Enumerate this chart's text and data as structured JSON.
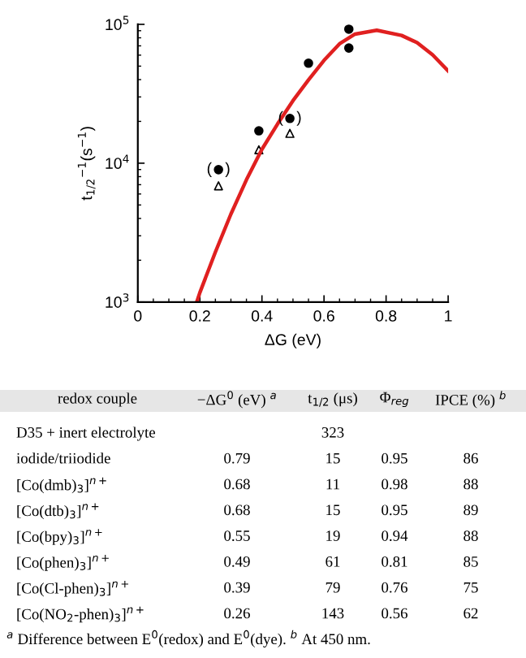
{
  "chart_data": [
    {
      "type": "scatter",
      "xlabel": "ΔG (eV)",
      "ylabel": "t$_{1/2}$$^{−1}$(s$^{−1}$)",
      "log": "y",
      "xlim": [
        0,
        1
      ],
      "ylim": [
        1000,
        100000
      ],
      "xticks": [
        0,
        0.2,
        0.4,
        0.6,
        0.8,
        1
      ],
      "yticks": [
        {
          "value": 1000,
          "label": "10$^{3}$"
        },
        {
          "value": 10000,
          "label": "10$^{4}$"
        },
        {
          "value": 100000,
          "label": "10$^{5}$"
        }
      ],
      "grid": false,
      "legend": false,
      "series": [
        {
          "type": "line",
          "color": "#e02020",
          "marker": "none",
          "x": [
            0.19,
            0.2,
            0.25,
            0.3,
            0.35,
            0.4,
            0.45,
            0.5,
            0.55,
            0.6,
            0.65,
            0.7,
            0.77,
            0.85,
            0.9,
            0.95,
            1.0
          ],
          "values": [
            1000,
            1170,
            2290,
            4300,
            7590,
            12600,
            19100,
            28200,
            39800,
            55000,
            72400,
            85100,
            90600,
            83200,
            73800,
            60300,
            46200
          ]
        },
        {
          "type": "scatter",
          "color": "#000000",
          "marker": "circle",
          "x": [
            0.26,
            0.39,
            0.49,
            0.55,
            0.68,
            0.68
          ],
          "values": [
            8980,
            17100,
            21000,
            52500,
            92300,
            67500
          ]
        },
        {
          "type": "scatter",
          "color": "#000000",
          "marker": "triangle",
          "x": [
            0.26,
            0.39,
            0.49
          ],
          "values": [
            6870,
            12500,
            16400
          ]
        }
      ],
      "annotations": [
        {
          "text": "(   )",
          "x": 0.26,
          "y": 8980
        },
        {
          "text": "(   )",
          "x": 0.49,
          "y": 21000
        }
      ]
    },
    {
      "type": "other",
      "ylabel": "redox couple",
      "categories": [
        "−ΔG$^{0}$ (eV) $^{a}$",
        "t$_{1/2}$ (μs)",
        "Φ$_{reg}$",
        "IPCE (%) $^{b}$"
      ],
      "y_categories": [
        "D35 + inert electrolyte",
        "iodide/triiodide",
        "[Co(dmb)$_{3}$]$^{n+}$",
        "[Co(dtb)$_{3}$]$^{n+}$",
        "[Co(bpy)$_{3}$]$^{n+}$",
        "[Co(phen)$_{3}$]$^{n+}$",
        "[Co(Cl-phen)$_{3}$]$^{n+}$",
        "[Co(NO$_{2}$-phen)$_{3}$]$^{n+}$"
      ],
      "cell_labels": [
        [
          null,
          "323",
          null,
          null
        ],
        [
          "0.79",
          "15",
          "0.95",
          "86"
        ],
        [
          "0.68",
          "11",
          "0.98",
          "88"
        ],
        [
          "0.68",
          "15",
          "0.95",
          "89"
        ],
        [
          "0.55",
          "19",
          "0.94",
          "88"
        ],
        [
          "0.49",
          "61",
          "0.81",
          "85"
        ],
        [
          "0.39",
          "79",
          "0.76",
          "75"
        ],
        [
          "0.26",
          "143",
          "0.56",
          "62"
        ]
      ],
      "annotations": [
        "$^{a}$ Difference between E$^{0}$(redox) and E$^{0}$(dye). $^{b}$ At 450 nm."
      ]
    }
  ]
}
